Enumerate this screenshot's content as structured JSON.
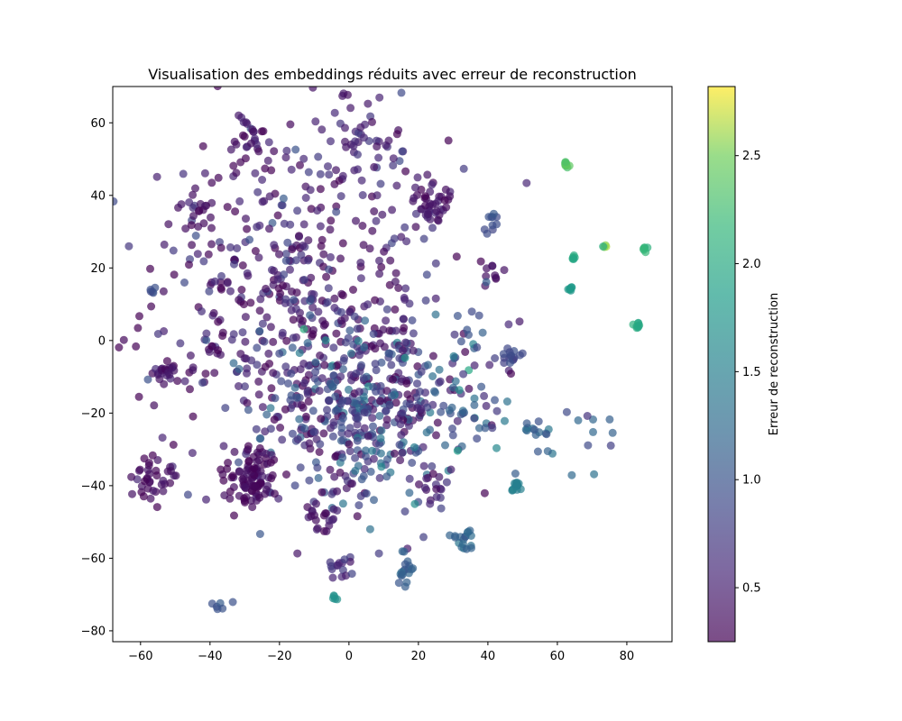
{
  "chart_data": {
    "type": "scatter",
    "title": "Visualisation des embeddings réduits avec erreur de reconstruction",
    "xlabel": "",
    "ylabel": "",
    "xlim": [
      -68,
      93
    ],
    "ylim": [
      -83,
      70
    ],
    "xticks": [
      -60,
      -40,
      -20,
      0,
      20,
      40,
      60,
      80
    ],
    "yticks": [
      -80,
      -60,
      -40,
      -20,
      0,
      20,
      40,
      60
    ],
    "grid": false,
    "colorbar": {
      "label": "Erreur de reconstruction",
      "range": [
        0.25,
        2.82
      ],
      "ticks": [
        0.5,
        1.0,
        1.5,
        2.0,
        2.5
      ],
      "colormap": "viridis",
      "alpha": 0.7
    },
    "point_alpha": 0.7,
    "clusters": [
      {
        "cx": -15,
        "cy": 10,
        "sx": 22,
        "sy": 25,
        "n": 520,
        "e": 0.45,
        "ev": 0.25
      },
      {
        "cx": 5,
        "cy": -20,
        "sx": 15,
        "sy": 14,
        "n": 380,
        "e": 0.85,
        "ev": 0.35
      },
      {
        "cx": -28,
        "cy": -38,
        "sx": 4,
        "sy": 4,
        "n": 90,
        "e": 0.32,
        "ev": 0.1
      },
      {
        "cx": -57,
        "cy": -37,
        "sx": 2.5,
        "sy": 3,
        "n": 35,
        "e": 0.35,
        "ev": 0.08
      },
      {
        "cx": -53,
        "cy": -9,
        "sx": 2,
        "sy": 2,
        "n": 20,
        "e": 0.4,
        "ev": 0.08
      },
      {
        "cx": -44,
        "cy": 36,
        "sx": 3,
        "sy": 3,
        "n": 20,
        "e": 0.38,
        "ev": 0.08
      },
      {
        "cx": 24,
        "cy": 38,
        "sx": 3,
        "sy": 3,
        "n": 40,
        "e": 0.4,
        "ev": 0.08
      },
      {
        "cx": -28,
        "cy": 55,
        "sx": 3,
        "sy": 4,
        "n": 25,
        "e": 0.4,
        "ev": 0.1
      },
      {
        "cx": 5,
        "cy": 55,
        "sx": 6,
        "sy": 5,
        "n": 45,
        "e": 0.55,
        "ev": 0.2
      },
      {
        "cx": -8,
        "cy": -49,
        "sx": 2.5,
        "sy": 2.5,
        "n": 18,
        "e": 0.4,
        "ev": 0.08
      },
      {
        "cx": -2,
        "cy": -62,
        "sx": 2,
        "sy": 2,
        "n": 15,
        "e": 0.6,
        "ev": 0.1
      },
      {
        "cx": 16,
        "cy": -62,
        "sx": 1.5,
        "sy": 2.5,
        "n": 18,
        "e": 1.1,
        "ev": 0.1
      },
      {
        "cx": 33,
        "cy": -55,
        "sx": 2,
        "sy": 2,
        "n": 18,
        "e": 1.2,
        "ev": 0.12
      },
      {
        "cx": 24,
        "cy": -40,
        "sx": 2.5,
        "sy": 2.5,
        "n": 15,
        "e": 0.5,
        "ev": 0.1
      },
      {
        "cx": 41,
        "cy": 19,
        "sx": 1.5,
        "sy": 1.5,
        "n": 10,
        "e": 0.35,
        "ev": 0.05
      },
      {
        "cx": 41,
        "cy": 33,
        "sx": 1.5,
        "sy": 2,
        "n": 10,
        "e": 0.9,
        "ev": 0.1
      },
      {
        "cx": 35,
        "cy": -10,
        "sx": 6,
        "sy": 10,
        "n": 50,
        "e": 1.0,
        "ev": 0.3
      },
      {
        "cx": 47,
        "cy": -4,
        "sx": 1.5,
        "sy": 1.5,
        "n": 14,
        "e": 0.9,
        "ev": 0.05
      },
      {
        "cx": 54,
        "cy": -24,
        "sx": 2.5,
        "sy": 1.5,
        "n": 12,
        "e": 1.15,
        "ev": 0.1
      },
      {
        "cx": 48.5,
        "cy": -40,
        "sx": 0.8,
        "sy": 0.8,
        "n": 14,
        "e": 1.5,
        "ev": 0.03
      },
      {
        "cx": 62.5,
        "cy": 48.5,
        "sx": 0.5,
        "sy": 0.5,
        "n": 10,
        "e": 2.35,
        "ev": 0.05
      },
      {
        "cx": 64.5,
        "cy": 22.8,
        "sx": 0.5,
        "sy": 0.5,
        "n": 6,
        "e": 2.0,
        "ev": 0.04
      },
      {
        "cx": 63.8,
        "cy": 14.3,
        "sx": 0.4,
        "sy": 0.4,
        "n": 7,
        "e": 1.8,
        "ev": 0.03
      },
      {
        "cx": 73.5,
        "cy": 25.8,
        "sx": 0.5,
        "sy": 0.5,
        "n": 4,
        "e": 2.4,
        "ev": 0.3
      },
      {
        "cx": 85,
        "cy": 25,
        "sx": 0.6,
        "sy": 0.5,
        "n": 6,
        "e": 2.15,
        "ev": 0.05
      },
      {
        "cx": 83,
        "cy": 4,
        "sx": 0.5,
        "sy": 0.8,
        "n": 8,
        "e": 2.0,
        "ev": 0.1
      },
      {
        "cx": -37,
        "cy": -73.5,
        "sx": 1.5,
        "sy": 1,
        "n": 6,
        "e": 1.0,
        "ev": 0.1
      },
      {
        "cx": -4,
        "cy": -71,
        "sx": 0.4,
        "sy": 0.4,
        "n": 5,
        "e": 1.7,
        "ev": 0.03
      },
      {
        "cx": -56,
        "cy": 14,
        "sx": 0.5,
        "sy": 0.5,
        "n": 5,
        "e": 0.95,
        "ev": 0.05
      },
      {
        "cx": 64,
        "cy": -28,
        "sx": 6,
        "sy": 5,
        "n": 10,
        "e": 1.05,
        "ev": 0.15
      },
      {
        "cx": 74,
        "cy": -26,
        "sx": 3,
        "sy": 5,
        "n": 5,
        "e": 1.1,
        "ev": 0.2
      }
    ]
  }
}
